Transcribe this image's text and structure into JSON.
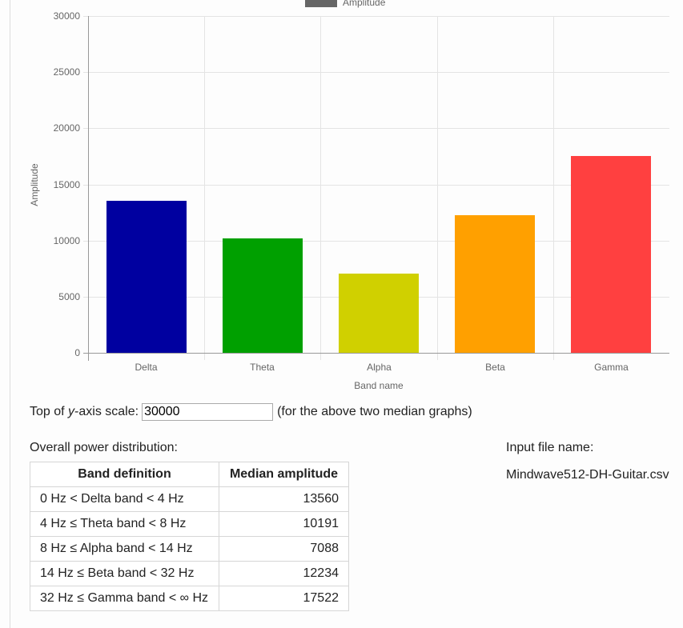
{
  "chart_data": {
    "type": "bar",
    "title": "",
    "legend": [
      "Amplitude"
    ],
    "legend_position": "top",
    "categories": [
      "Delta",
      "Theta",
      "Alpha",
      "Beta",
      "Gamma"
    ],
    "values": [
      13560,
      10191,
      7088,
      12234,
      17522
    ],
    "colors": [
      "#0000a0",
      "#00a000",
      "#d0d000",
      "#ffa000",
      "#ff4040"
    ],
    "xlabel": "Band name",
    "ylabel": "Amplitude",
    "ylim": [
      0,
      30000
    ],
    "yticks": [
      "30000",
      "25000",
      "20000",
      "15000",
      "10000",
      "5000",
      "0"
    ],
    "grid": true
  },
  "controls": {
    "scale_label_prefix": "Top of ",
    "scale_label_var": "y",
    "scale_label_suffix": "-axis scale:",
    "scale_value": "30000",
    "scale_note": "(for the above two median graphs)"
  },
  "power": {
    "label": "Overall power distribution:",
    "headers": [
      "Band definition",
      "Median amplitude"
    ],
    "rows": [
      {
        "def": "0 Hz < Delta band < 4 Hz",
        "amp": "13560"
      },
      {
        "def": "4 Hz ≤ Theta band < 8 Hz",
        "amp": "10191"
      },
      {
        "def": "8 Hz ≤ Alpha band < 14 Hz",
        "amp": "7088"
      },
      {
        "def": "14 Hz ≤ Beta band < 32 Hz",
        "amp": "12234"
      },
      {
        "def": "32 Hz ≤ Gamma band < ∞ Hz",
        "amp": "17522"
      }
    ]
  },
  "input_file": {
    "label": "Input file name:",
    "name": "Mindwave512-DH-Guitar.csv"
  }
}
